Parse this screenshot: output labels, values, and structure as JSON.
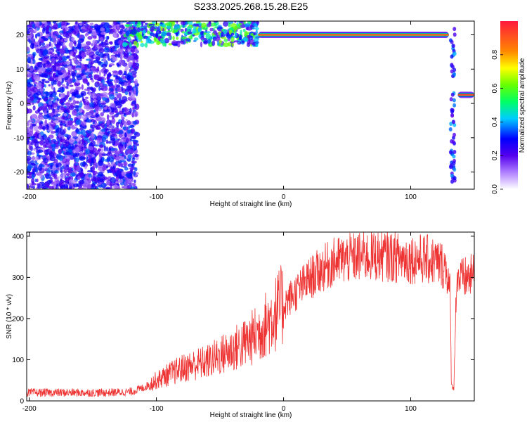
{
  "title": "S233.2025.268.15.28.E25",
  "chart_data": [
    {
      "type": "heatmap",
      "name": "spectrogram",
      "xlabel": "Height of straight line (km)",
      "ylabel": "Frequency (Hz)",
      "xlim": [
        -202,
        150
      ],
      "ylim": [
        -25,
        24
      ],
      "xticks": [
        -200,
        -100,
        0,
        100
      ],
      "yticks": [
        -20,
        -10,
        0,
        10,
        20
      ],
      "colorbar": {
        "label": "Normalized spectral amplitude",
        "range": [
          0,
          1
        ],
        "ticks": [
          "0.0",
          "0.2",
          "0.4",
          "0.6",
          "0.8"
        ]
      },
      "features": [
        {
          "description": "broadband noise",
          "x_range": [
            -202,
            -115
          ],
          "freq_range": [
            -25,
            24
          ],
          "amplitude": 0.25
        },
        {
          "description": "mixed noise and line",
          "x_range": [
            -125,
            -20
          ],
          "freq_range": [
            17,
            24
          ],
          "amplitude": 0.45
        },
        {
          "description": "spectral line",
          "x_range": [
            -20,
            130
          ],
          "frequency": 20,
          "amplitude": 0.9
        },
        {
          "description": "vertical broadband stripe",
          "x": 133,
          "freq_range": [
            -25,
            24
          ],
          "amplitude": 0.3
        },
        {
          "description": "spectral line",
          "x_range": [
            137,
            150
          ],
          "frequency": 2.5,
          "amplitude": 0.95
        }
      ]
    },
    {
      "type": "line",
      "name": "snr",
      "xlabel": "Height of straight line (km)",
      "ylabel": "SNR (10 * v/v)",
      "xlim": [
        -202,
        150
      ],
      "ylim": [
        0,
        410
      ],
      "xticks": [
        -200,
        -100,
        0,
        100
      ],
      "yticks": [
        0,
        100,
        200,
        300,
        400
      ],
      "color": "#ee3333",
      "series": [
        {
          "name": "SNR",
          "x": [
            -202,
            -180,
            -160,
            -140,
            -120,
            -110,
            -100,
            -90,
            -80,
            -70,
            -60,
            -50,
            -40,
            -30,
            -20,
            -10,
            0,
            10,
            20,
            30,
            40,
            50,
            60,
            70,
            80,
            90,
            100,
            110,
            120,
            128,
            131,
            132,
            134,
            136,
            140,
            145,
            150
          ],
          "y": [
            20,
            20,
            20,
            20,
            22,
            32,
            50,
            65,
            78,
            88,
            95,
            110,
            125,
            140,
            165,
            200,
            235,
            265,
            295,
            320,
            338,
            345,
            350,
            352,
            352,
            348,
            345,
            345,
            338,
            325,
            260,
            35,
            35,
            300,
            295,
            300,
            305
          ]
        }
      ]
    }
  ]
}
